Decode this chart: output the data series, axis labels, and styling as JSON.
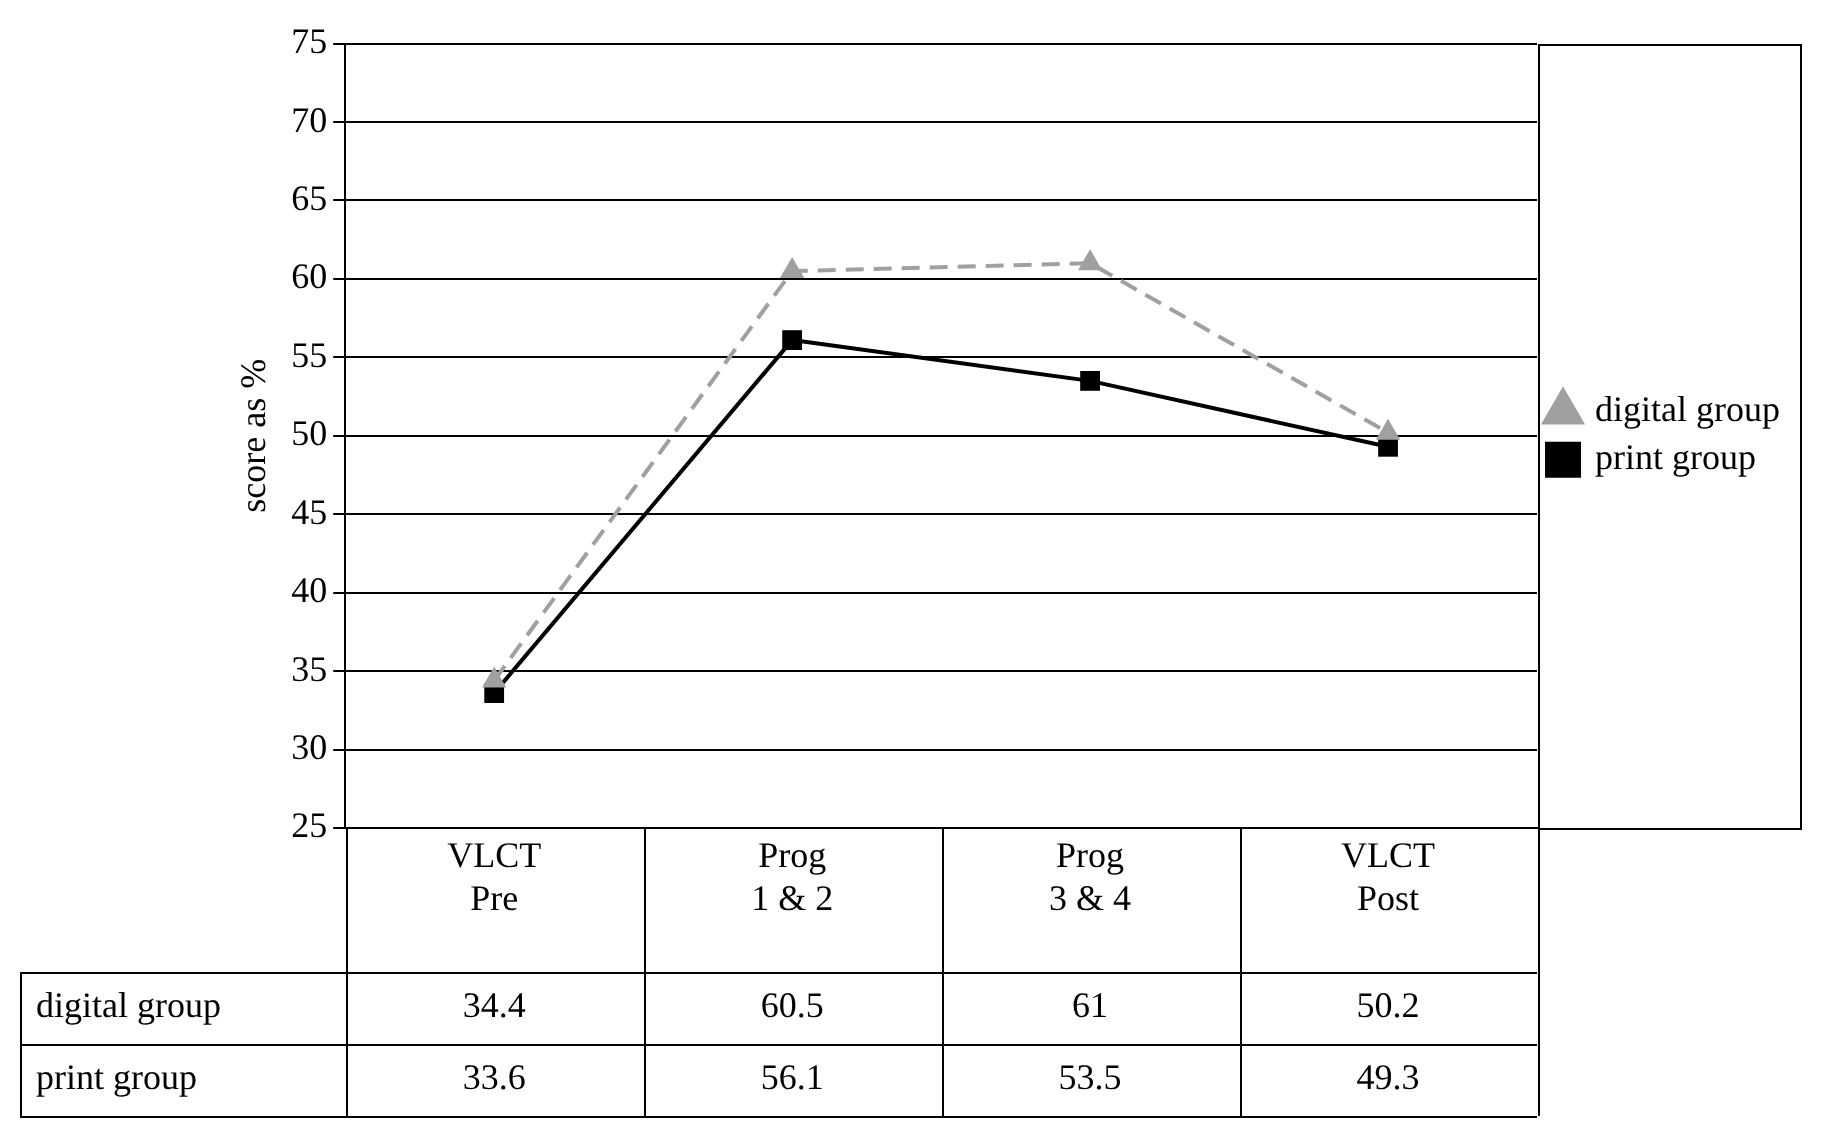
{
  "chart_data": {
    "type": "line",
    "ylabel": "score as %",
    "categories": [
      "VLCT Pre",
      "Prog 1 & 2",
      "Prog 3 & 4",
      "VLCT Post"
    ],
    "series": [
      {
        "name": "digital group",
        "color": "#a0a0a0",
        "values": [
          34.4,
          60.5,
          61,
          50.2
        ],
        "marker": "triangle",
        "line_style": "dashed"
      },
      {
        "name": "print group",
        "color": "#000000",
        "values": [
          33.6,
          56.1,
          53.5,
          49.3
        ],
        "marker": "square",
        "line_style": "solid"
      }
    ],
    "ylim": [
      25,
      75
    ],
    "yticks": [
      25,
      30,
      35,
      40,
      45,
      50,
      55,
      60,
      65,
      70,
      75
    ],
    "grid": "y",
    "legend": "right",
    "data_labels": true
  }
}
